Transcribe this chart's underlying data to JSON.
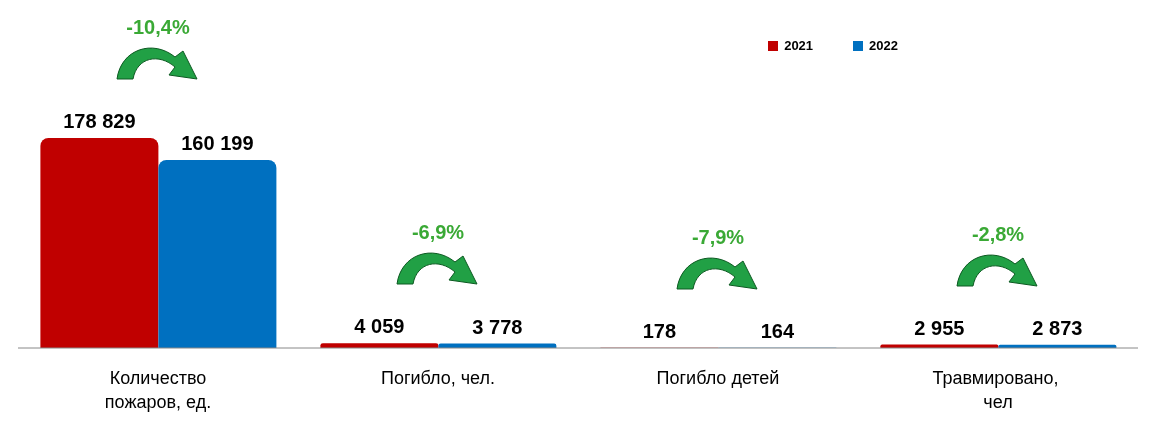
{
  "chart_data": {
    "type": "bar",
    "categories": [
      "Количество пожаров, ед.",
      "Погибло, чел.",
      "Погибло детей",
      "Травмировано,  чел"
    ],
    "series": [
      {
        "name": "2021",
        "color": "#c00000",
        "values": [
          178829,
          4059,
          178,
          2955
        ],
        "value_labels": [
          "178 829",
          "4 059",
          "178",
          "2 955"
        ]
      },
      {
        "name": "2022",
        "color": "#0070c0",
        "values": [
          160199,
          3778,
          164,
          2873
        ],
        "value_labels": [
          "160 199",
          "3 778",
          "164",
          "2 873"
        ]
      }
    ],
    "annotations": [
      "-10,4%",
      "-6,9%",
      "-7,9%",
      "-2,8%"
    ],
    "legend": "top right"
  }
}
